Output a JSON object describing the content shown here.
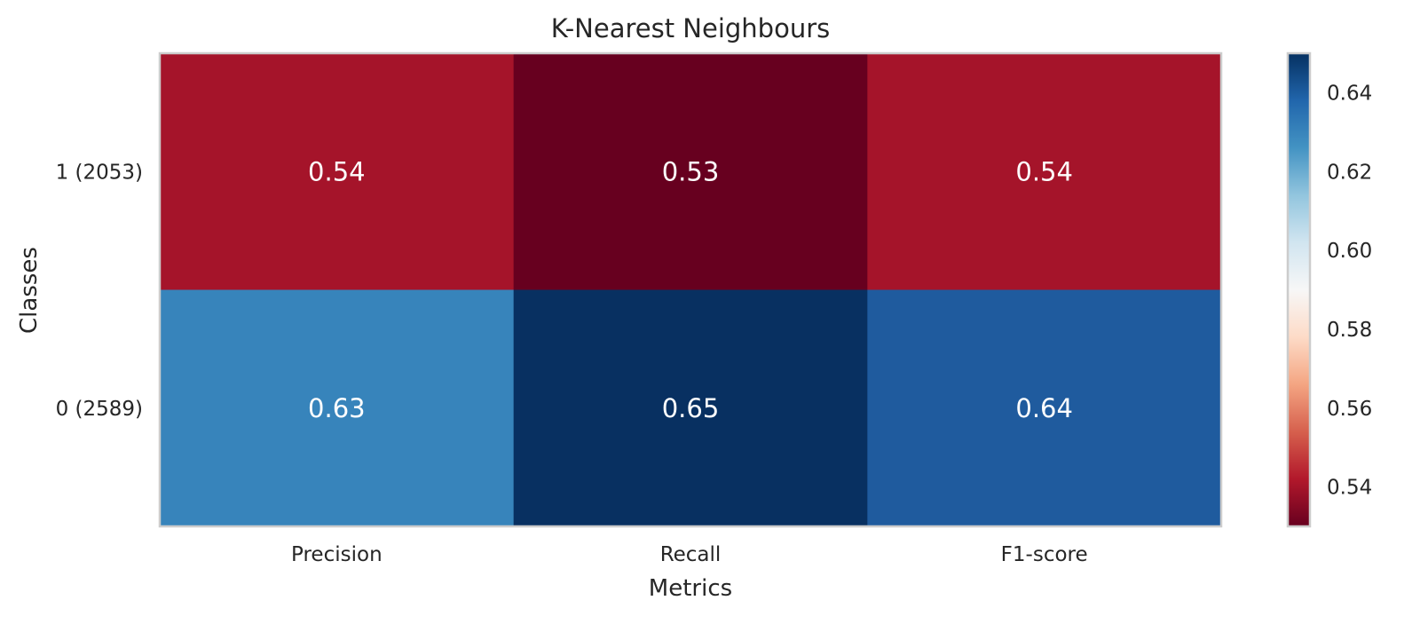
{
  "chart_data": {
    "type": "heatmap",
    "title": "K-Nearest Neighbours",
    "xlabel": "Metrics",
    "ylabel": "Classes",
    "x_categories": [
      "Precision",
      "Recall",
      "F1-score"
    ],
    "y_categories": [
      "1 (2053)",
      "0 (2589)"
    ],
    "values": [
      [
        0.54,
        0.53,
        0.54
      ],
      [
        0.63,
        0.65,
        0.64
      ]
    ],
    "value_labels": [
      [
        "0.54",
        "0.53",
        "0.54"
      ],
      [
        "0.63",
        "0.65",
        "0.64"
      ]
    ],
    "cell_colors": [
      [
        "#a5142a",
        "#67001f",
        "#a5142a"
      ],
      [
        "#3784bb",
        "#083061",
        "#1f5b9e"
      ]
    ],
    "colorbar": {
      "colormap": "RdBu",
      "range": [
        0.53,
        0.65
      ],
      "ticks": [
        0.54,
        0.56,
        0.58,
        0.6,
        0.62,
        0.64
      ],
      "tick_labels": [
        "0.54",
        "0.56",
        "0.58",
        "0.60",
        "0.62",
        "0.64"
      ],
      "stops": [
        "#67001f",
        "#b2182b",
        "#d6604d",
        "#f4a582",
        "#fddbc7",
        "#f7f7f7",
        "#d1e5f0",
        "#92c5de",
        "#4393c3",
        "#2166ac",
        "#053061"
      ]
    },
    "grid": false,
    "legend": "colorbar-right"
  }
}
